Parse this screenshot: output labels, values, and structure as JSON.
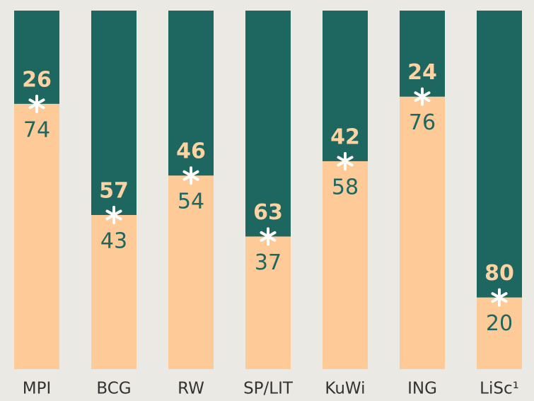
{
  "chart_data": {
    "type": "stacked-bar",
    "categories": [
      "MPI",
      "BCG",
      "RW",
      "SP/LIT",
      "KuWi",
      "ING",
      "LiSc¹"
    ],
    "series": [
      {
        "color": "#fdca98",
        "values": [
          74,
          43,
          54,
          37,
          58,
          76,
          20
        ]
      },
      {
        "color": "#1e6660",
        "values": [
          26,
          57,
          46,
          63,
          42,
          24,
          80
        ]
      }
    ],
    "ylim": [
      0,
      100
    ]
  }
}
